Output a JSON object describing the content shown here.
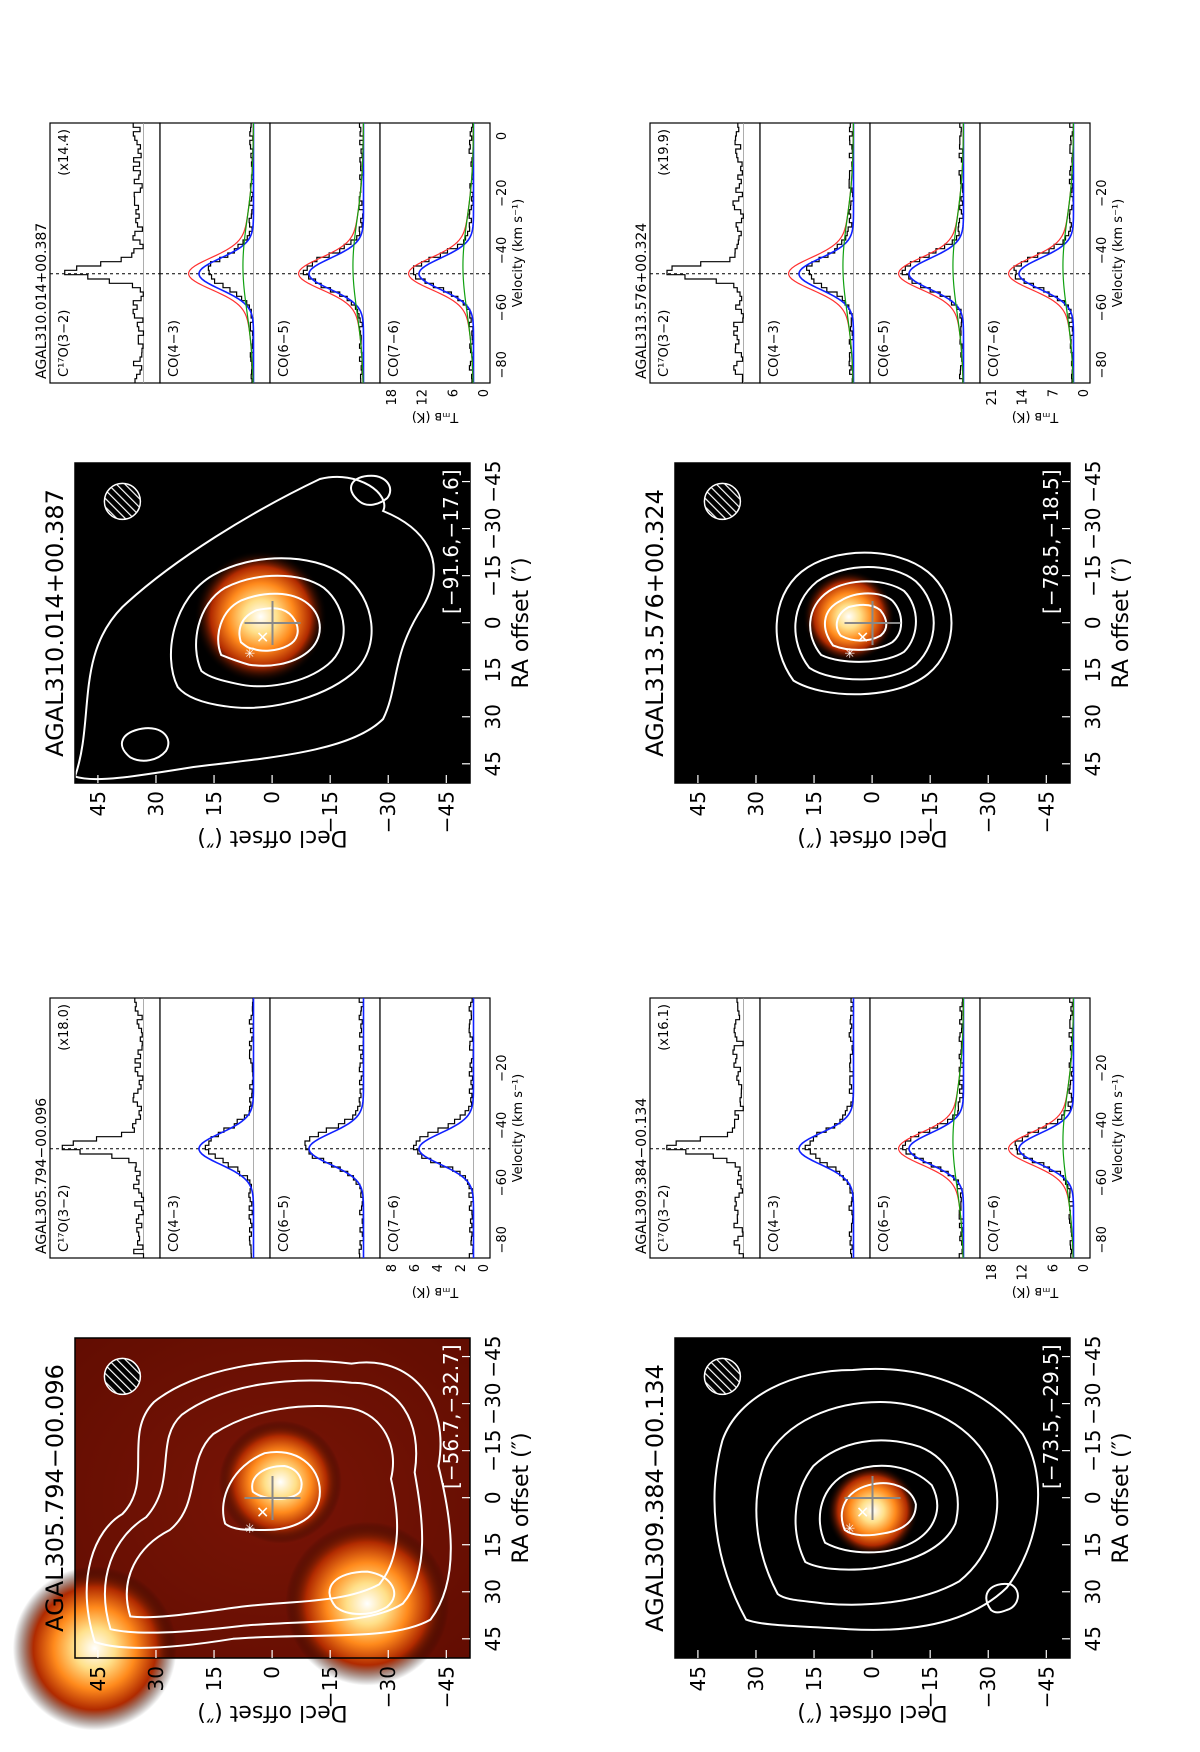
{
  "figure": {
    "rotation": "90 degrees counter-clockwise",
    "colors": {
      "contour": "#ffffff",
      "spectrum": "#000000",
      "fit_total": "#ff3030",
      "fit_narrow": "#1020ff",
      "fit_broad": "#10a010",
      "fit_extra": "#a05a00"
    },
    "maps": [
      {
        "source_label": "AGAL305.794−00.096",
        "velocity_range_label": "[−56.7,−32.7]",
        "background": "red"
      },
      {
        "source_label": "AGAL310.014+00.387",
        "velocity_range_label": "[−91.6,−17.6]",
        "background": "dark"
      },
      {
        "source_label": "AGAL309.384−00.134",
        "velocity_range_label": "[−73.5,−29.5]",
        "background": "dark"
      },
      {
        "source_label": "AGAL313.576+00.324",
        "velocity_range_label": "[−78.5,−18.5]",
        "background": "dark"
      }
    ],
    "map_axes": {
      "xlabel": "RA offset (″)",
      "ylabel": "Decl offset (″)",
      "ticks": [
        "45",
        "30",
        "15",
        "0",
        "−15",
        "−30",
        "−45"
      ]
    },
    "spectra": [
      {
        "source_label": "AGAL305.794−00.096",
        "scale_label": "(x18.0)",
        "t_ticks": [
          "8",
          "6",
          "4",
          "2",
          "0"
        ],
        "v_ticks": [
          "−80",
          "−60",
          "−40",
          "−20"
        ]
      },
      {
        "source_label": "AGAL310.014+00.387",
        "scale_label": "(x14.4)",
        "t_ticks": [
          "18",
          "12",
          "6",
          "0"
        ],
        "v_ticks": [
          "−80",
          "−60",
          "−40",
          "−20",
          "0"
        ]
      },
      {
        "source_label": "AGAL309.384−00.134",
        "scale_label": "(x16.1)",
        "t_ticks": [
          "18",
          "12",
          "6",
          "0"
        ],
        "v_ticks": [
          "−80",
          "−60",
          "−40",
          "−20"
        ]
      },
      {
        "source_label": "AGAL313.576+00.324",
        "scale_label": "(x19.9)",
        "t_ticks": [
          "21",
          "14",
          "7",
          "0"
        ],
        "v_ticks": [
          "−80",
          "−60",
          "−40",
          "−20"
        ]
      }
    ],
    "spectrum_lines": [
      "C¹⁷O(3−2)",
      "CO(4−3)",
      "CO(6−5)",
      "CO(7−6)"
    ],
    "spectrum_axes": {
      "xlabel": "Velocity (km s⁻¹)",
      "ylabel": "Tₘʙ (K)"
    }
  }
}
